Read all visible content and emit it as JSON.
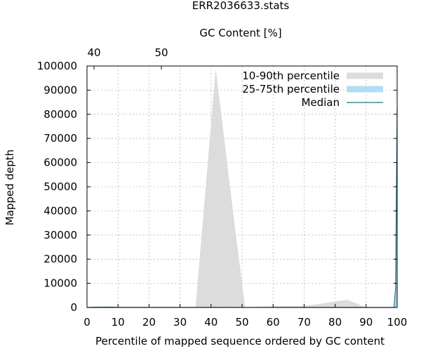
{
  "chart_data": {
    "type": "area",
    "title": "ERR2036633.stats",
    "x2label": "GC Content [%]",
    "x2_ticks": [
      "40",
      "50"
    ],
    "x2_tick_values": [
      40,
      50
    ],
    "xlabel": "Percentile of mapped sequence ordered by GC content",
    "ylabel": "Mapped depth",
    "xlim": [
      0,
      100
    ],
    "ylim": [
      0,
      100000
    ],
    "x_ticks": [
      0,
      10,
      20,
      30,
      40,
      50,
      60,
      70,
      80,
      90,
      100
    ],
    "y_ticks": [
      0,
      10000,
      20000,
      30000,
      40000,
      50000,
      60000,
      70000,
      80000,
      90000,
      100000
    ],
    "grid": true,
    "legend_position": "top-right",
    "series": [
      {
        "name": "10-90th percentile",
        "color": "#dcdcdc",
        "x": [
          0,
          2,
          8,
          10,
          15,
          20,
          25,
          30,
          34,
          35,
          41.5,
          48,
          51,
          55,
          60,
          65,
          70,
          75,
          80,
          84,
          90,
          98,
          99,
          99.5,
          100
        ],
        "low": [
          0,
          0,
          0,
          0,
          0,
          0,
          0,
          0,
          0,
          0,
          0,
          0,
          0,
          0,
          0,
          0,
          0,
          0,
          0,
          0,
          0,
          0,
          0,
          0,
          0
        ],
        "high": [
          0,
          200,
          300,
          250,
          0,
          0,
          0,
          0,
          0,
          0,
          99000,
          30000,
          0,
          400,
          500,
          600,
          600,
          1500,
          2500,
          3200,
          0,
          0,
          0,
          0,
          0
        ]
      },
      {
        "name": "25-75th percentile",
        "color": "#b3dcf5",
        "x": [
          0,
          2,
          8,
          10,
          99,
          99.5,
          100
        ],
        "low": [
          0,
          0,
          0,
          0,
          0,
          0,
          0
        ],
        "high": [
          0,
          150,
          200,
          100,
          0,
          10000,
          82000
        ]
      },
      {
        "name": "Median",
        "color": "#1f6f8b",
        "x": [
          0,
          2,
          8,
          10,
          99,
          99.5,
          100
        ],
        "y": [
          0,
          100,
          150,
          50,
          0,
          8000,
          82000
        ]
      }
    ]
  }
}
